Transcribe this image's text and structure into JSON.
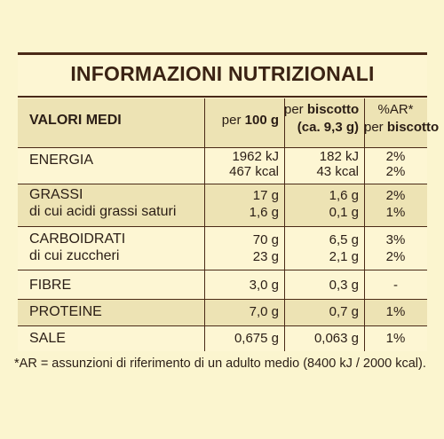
{
  "title": "INFORMAZIONI NUTRIZIONALI",
  "header": {
    "col1": "VALORI MEDI",
    "col2_pre": "per ",
    "col2_bold": "100 g",
    "col3_line1_pre": "per ",
    "col3_line1_bold": "biscotto",
    "col3_line2": "(ca. 9,3 g)",
    "col4_line1": "%AR*",
    "col4_line2_pre": "per ",
    "col4_line2_bold": "biscotto"
  },
  "rows": [
    {
      "label1": "ENERGIA",
      "label2": "",
      "v100_1": "1962 kJ",
      "v100_2": "467 kcal",
      "vb_1": "182 kJ",
      "vb_2": "43 kcal",
      "ar_1": "2%",
      "ar_2": "2%"
    },
    {
      "label1": "GRASSI",
      "label2": "di cui acidi grassi saturi",
      "v100_1": "17 g",
      "v100_2": "1,6 g",
      "vb_1": "1,6 g",
      "vb_2": "0,1 g",
      "ar_1": "2%",
      "ar_2": "1%"
    },
    {
      "label1": "CARBOIDRATI",
      "label2": "di cui zuccheri",
      "v100_1": "70 g",
      "v100_2": "23 g",
      "vb_1": "6,5 g",
      "vb_2": "2,1 g",
      "ar_1": "3%",
      "ar_2": "2%"
    },
    {
      "label1": "FIBRE",
      "label2": "",
      "v100_1": "3,0 g",
      "v100_2": "",
      "vb_1": "0,3 g",
      "vb_2": "",
      "ar_1": "-",
      "ar_2": ""
    },
    {
      "label1": "PROTEINE",
      "label2": "",
      "v100_1": "7,0 g",
      "v100_2": "",
      "vb_1": "0,7 g",
      "vb_2": "",
      "ar_1": "1%",
      "ar_2": ""
    },
    {
      "label1": "SALE",
      "label2": "",
      "v100_1": "0,675 g",
      "v100_2": "",
      "vb_1": "0,063 g",
      "vb_2": "",
      "ar_1": "1%",
      "ar_2": ""
    }
  ],
  "footnote": "*AR = assunzioni di riferimento di un adulto medio (8400 kJ / 2000 kcal).",
  "colors": {
    "background": "#fbf5cf",
    "band": "#ede3b4",
    "rule": "#4a2a17",
    "text": "#2a1d15"
  }
}
